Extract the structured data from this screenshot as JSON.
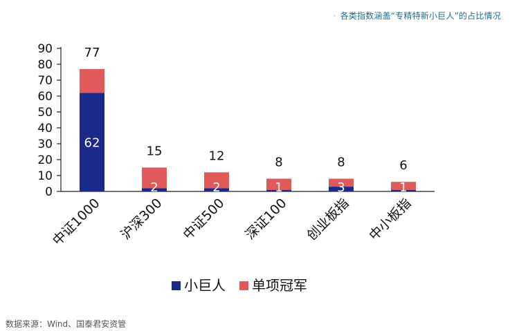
{
  "caption": "各类指数涵盖“专精特新小巨人”的占比情况",
  "source": "数据来源：Wind、国泰君安资管",
  "chart_data": {
    "type": "bar",
    "stacked": true,
    "categories": [
      "中证1000",
      "沪深300",
      "中证500",
      "深证100",
      "创业板指",
      "中小板指"
    ],
    "series": [
      {
        "name": "小巨人",
        "color": "#1b2a8a",
        "values": [
          62,
          2,
          2,
          1,
          3,
          1
        ]
      },
      {
        "name": "单项冠军",
        "color": "#e05a5a",
        "values": [
          15,
          13,
          10,
          7,
          5,
          5
        ]
      }
    ],
    "totals": [
      77,
      15,
      12,
      8,
      8,
      6
    ],
    "inner_labels": [
      "62",
      "2",
      "2",
      "1",
      "3",
      "1"
    ],
    "ylim": [
      0,
      90
    ],
    "yticks": [
      0,
      10,
      20,
      30,
      40,
      50,
      60,
      70,
      80,
      90
    ],
    "legend": "bottom",
    "grid": false
  }
}
